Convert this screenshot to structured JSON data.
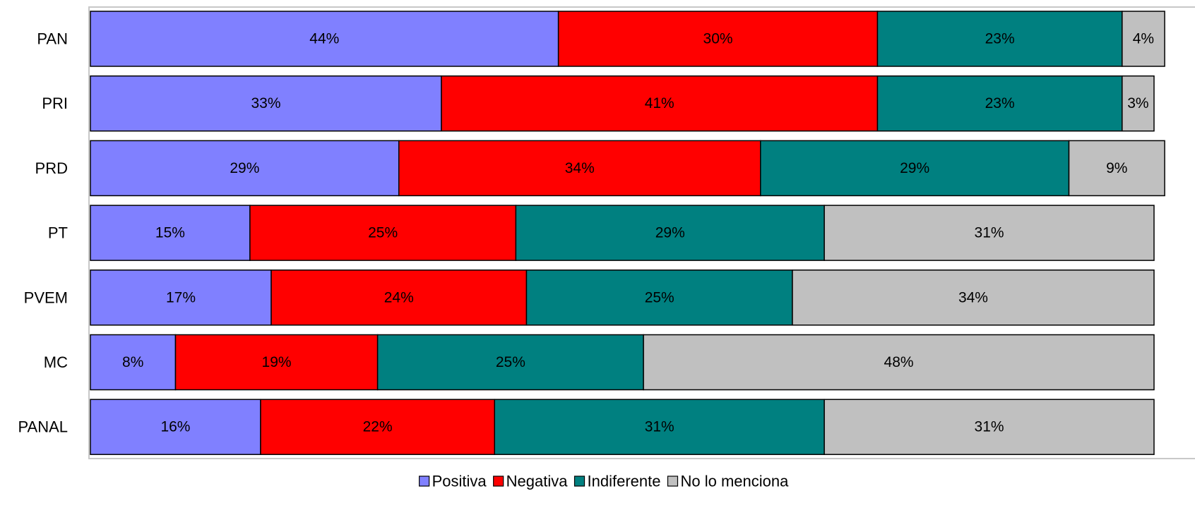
{
  "chart_data": {
    "type": "bar",
    "orientation": "horizontal",
    "stacked": true,
    "categories": [
      "PAN",
      "PRI",
      "PRD",
      "PT",
      "PVEM",
      "MC",
      "PANAL"
    ],
    "series": [
      {
        "name": "Positiva",
        "color": "#8080ff",
        "values": [
          44,
          33,
          29,
          15,
          17,
          8,
          16
        ]
      },
      {
        "name": "Negativa",
        "color": "#ff0000",
        "values": [
          30,
          41,
          34,
          25,
          24,
          19,
          22
        ]
      },
      {
        "name": "Indiferente",
        "color": "#008080",
        "values": [
          23,
          23,
          29,
          29,
          25,
          25,
          31
        ]
      },
      {
        "name": "No lo menciona",
        "color": "#c0c0c0",
        "values": [
          4,
          3,
          9,
          31,
          34,
          48,
          31
        ]
      }
    ],
    "labels": [
      [
        "44%",
        "33%",
        "29%",
        "15%",
        "17%",
        "8%",
        "16%"
      ],
      [
        "30%",
        "41%",
        "34%",
        "25%",
        "24%",
        "19%",
        "22%"
      ],
      [
        "23%",
        "23%",
        "29%",
        "29%",
        "25%",
        "25%",
        "31%"
      ],
      [
        "4%",
        "3%",
        "9%",
        "31%",
        "34%",
        "48%",
        "31%"
      ]
    ],
    "xlim": [
      0,
      100
    ],
    "grid": false,
    "legend_position": "bottom",
    "title": "",
    "xlabel": "",
    "ylabel": ""
  }
}
